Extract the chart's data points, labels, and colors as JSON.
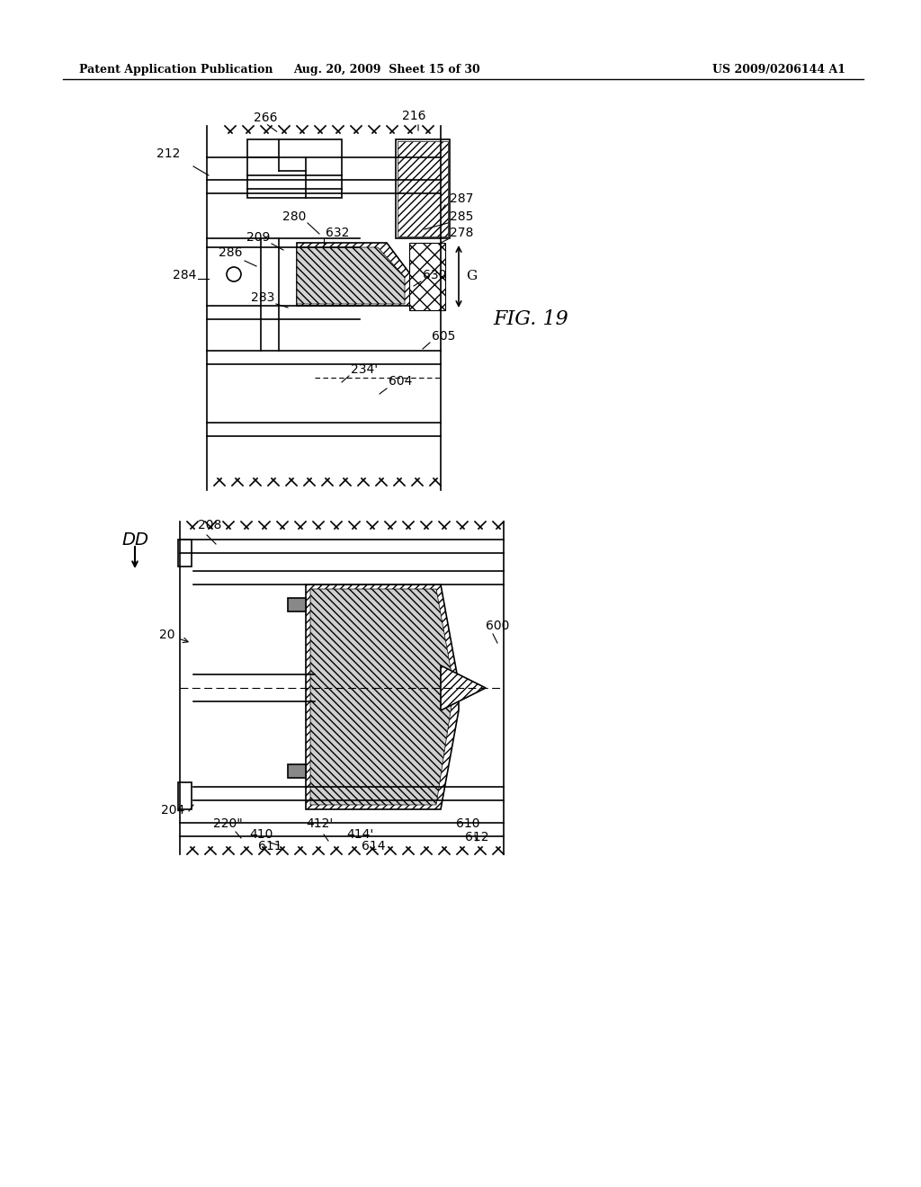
{
  "background_color": "#ffffff",
  "header_left": "Patent Application Publication",
  "header_mid": "Aug. 20, 2009  Sheet 15 of 30",
  "header_right": "US 2009/0206144 A1",
  "fig_label": "FIG. 19",
  "dd_label": "DD",
  "figure_width": 10.24,
  "figure_height": 13.2,
  "dpi": 100
}
